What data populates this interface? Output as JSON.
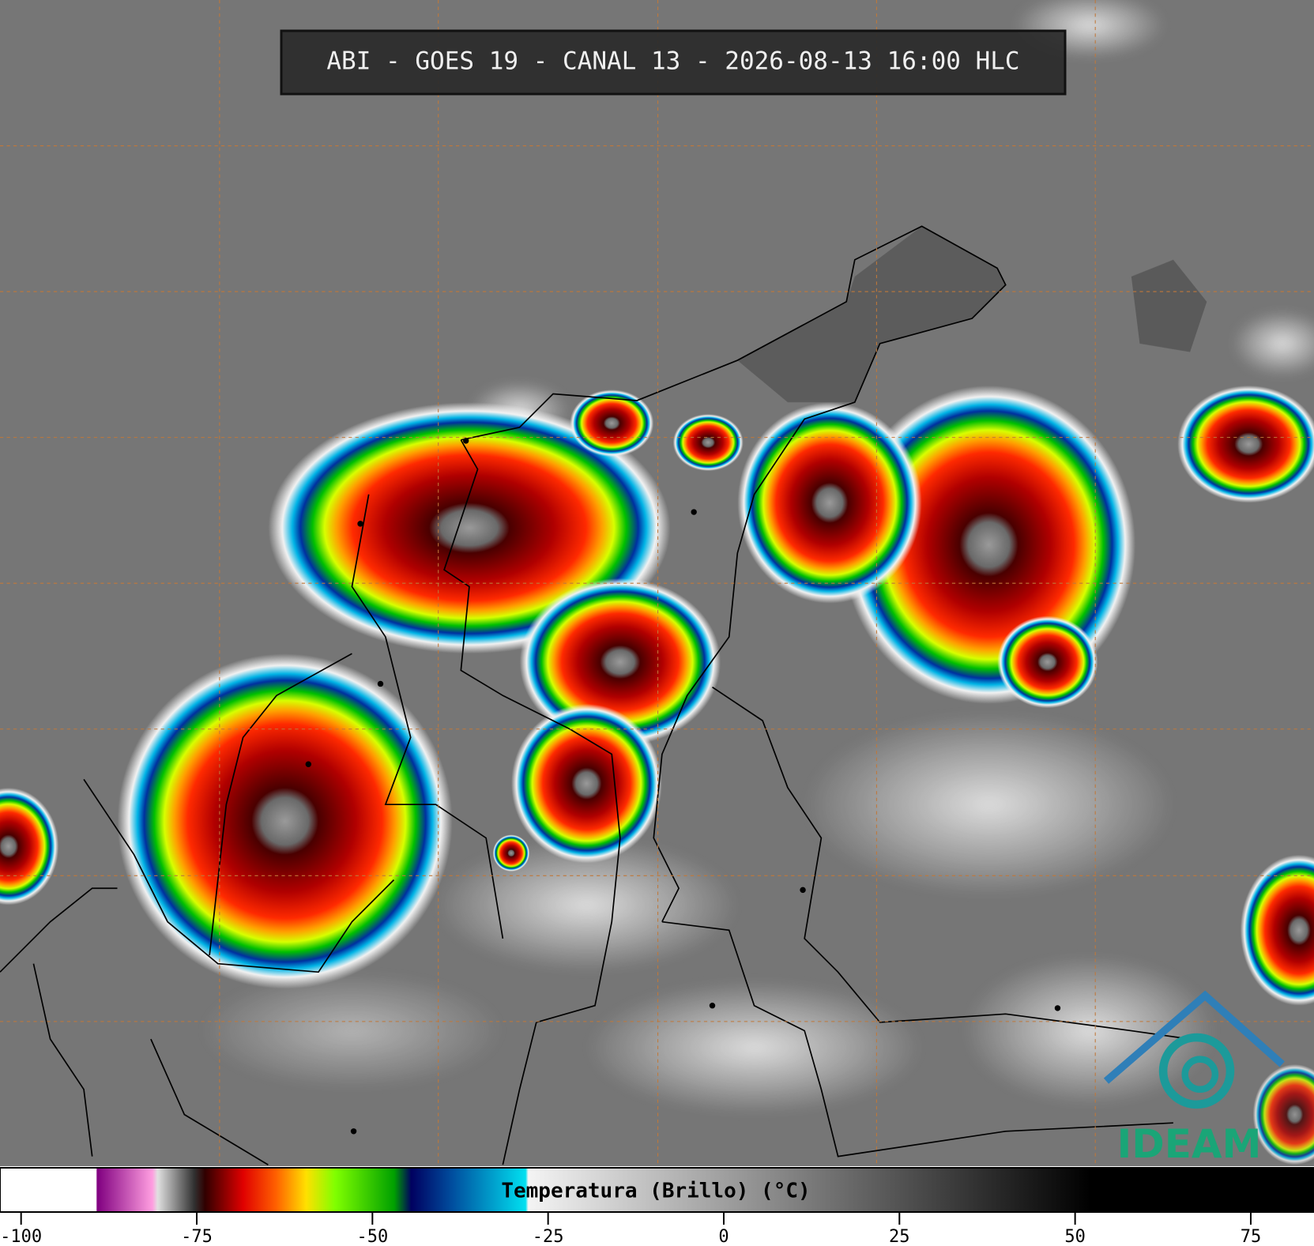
{
  "title": "ABI - GOES 19 - CANAL 13 - 2026-08-13 16:00 HLC",
  "logo": "IDEAM",
  "colorbar": {
    "label": "Temperatura (Brillo) (°C)",
    "range": [
      -103,
      84
    ],
    "ticks": [
      -100,
      -75,
      -50,
      -25,
      0,
      25,
      50,
      75
    ]
  }
}
